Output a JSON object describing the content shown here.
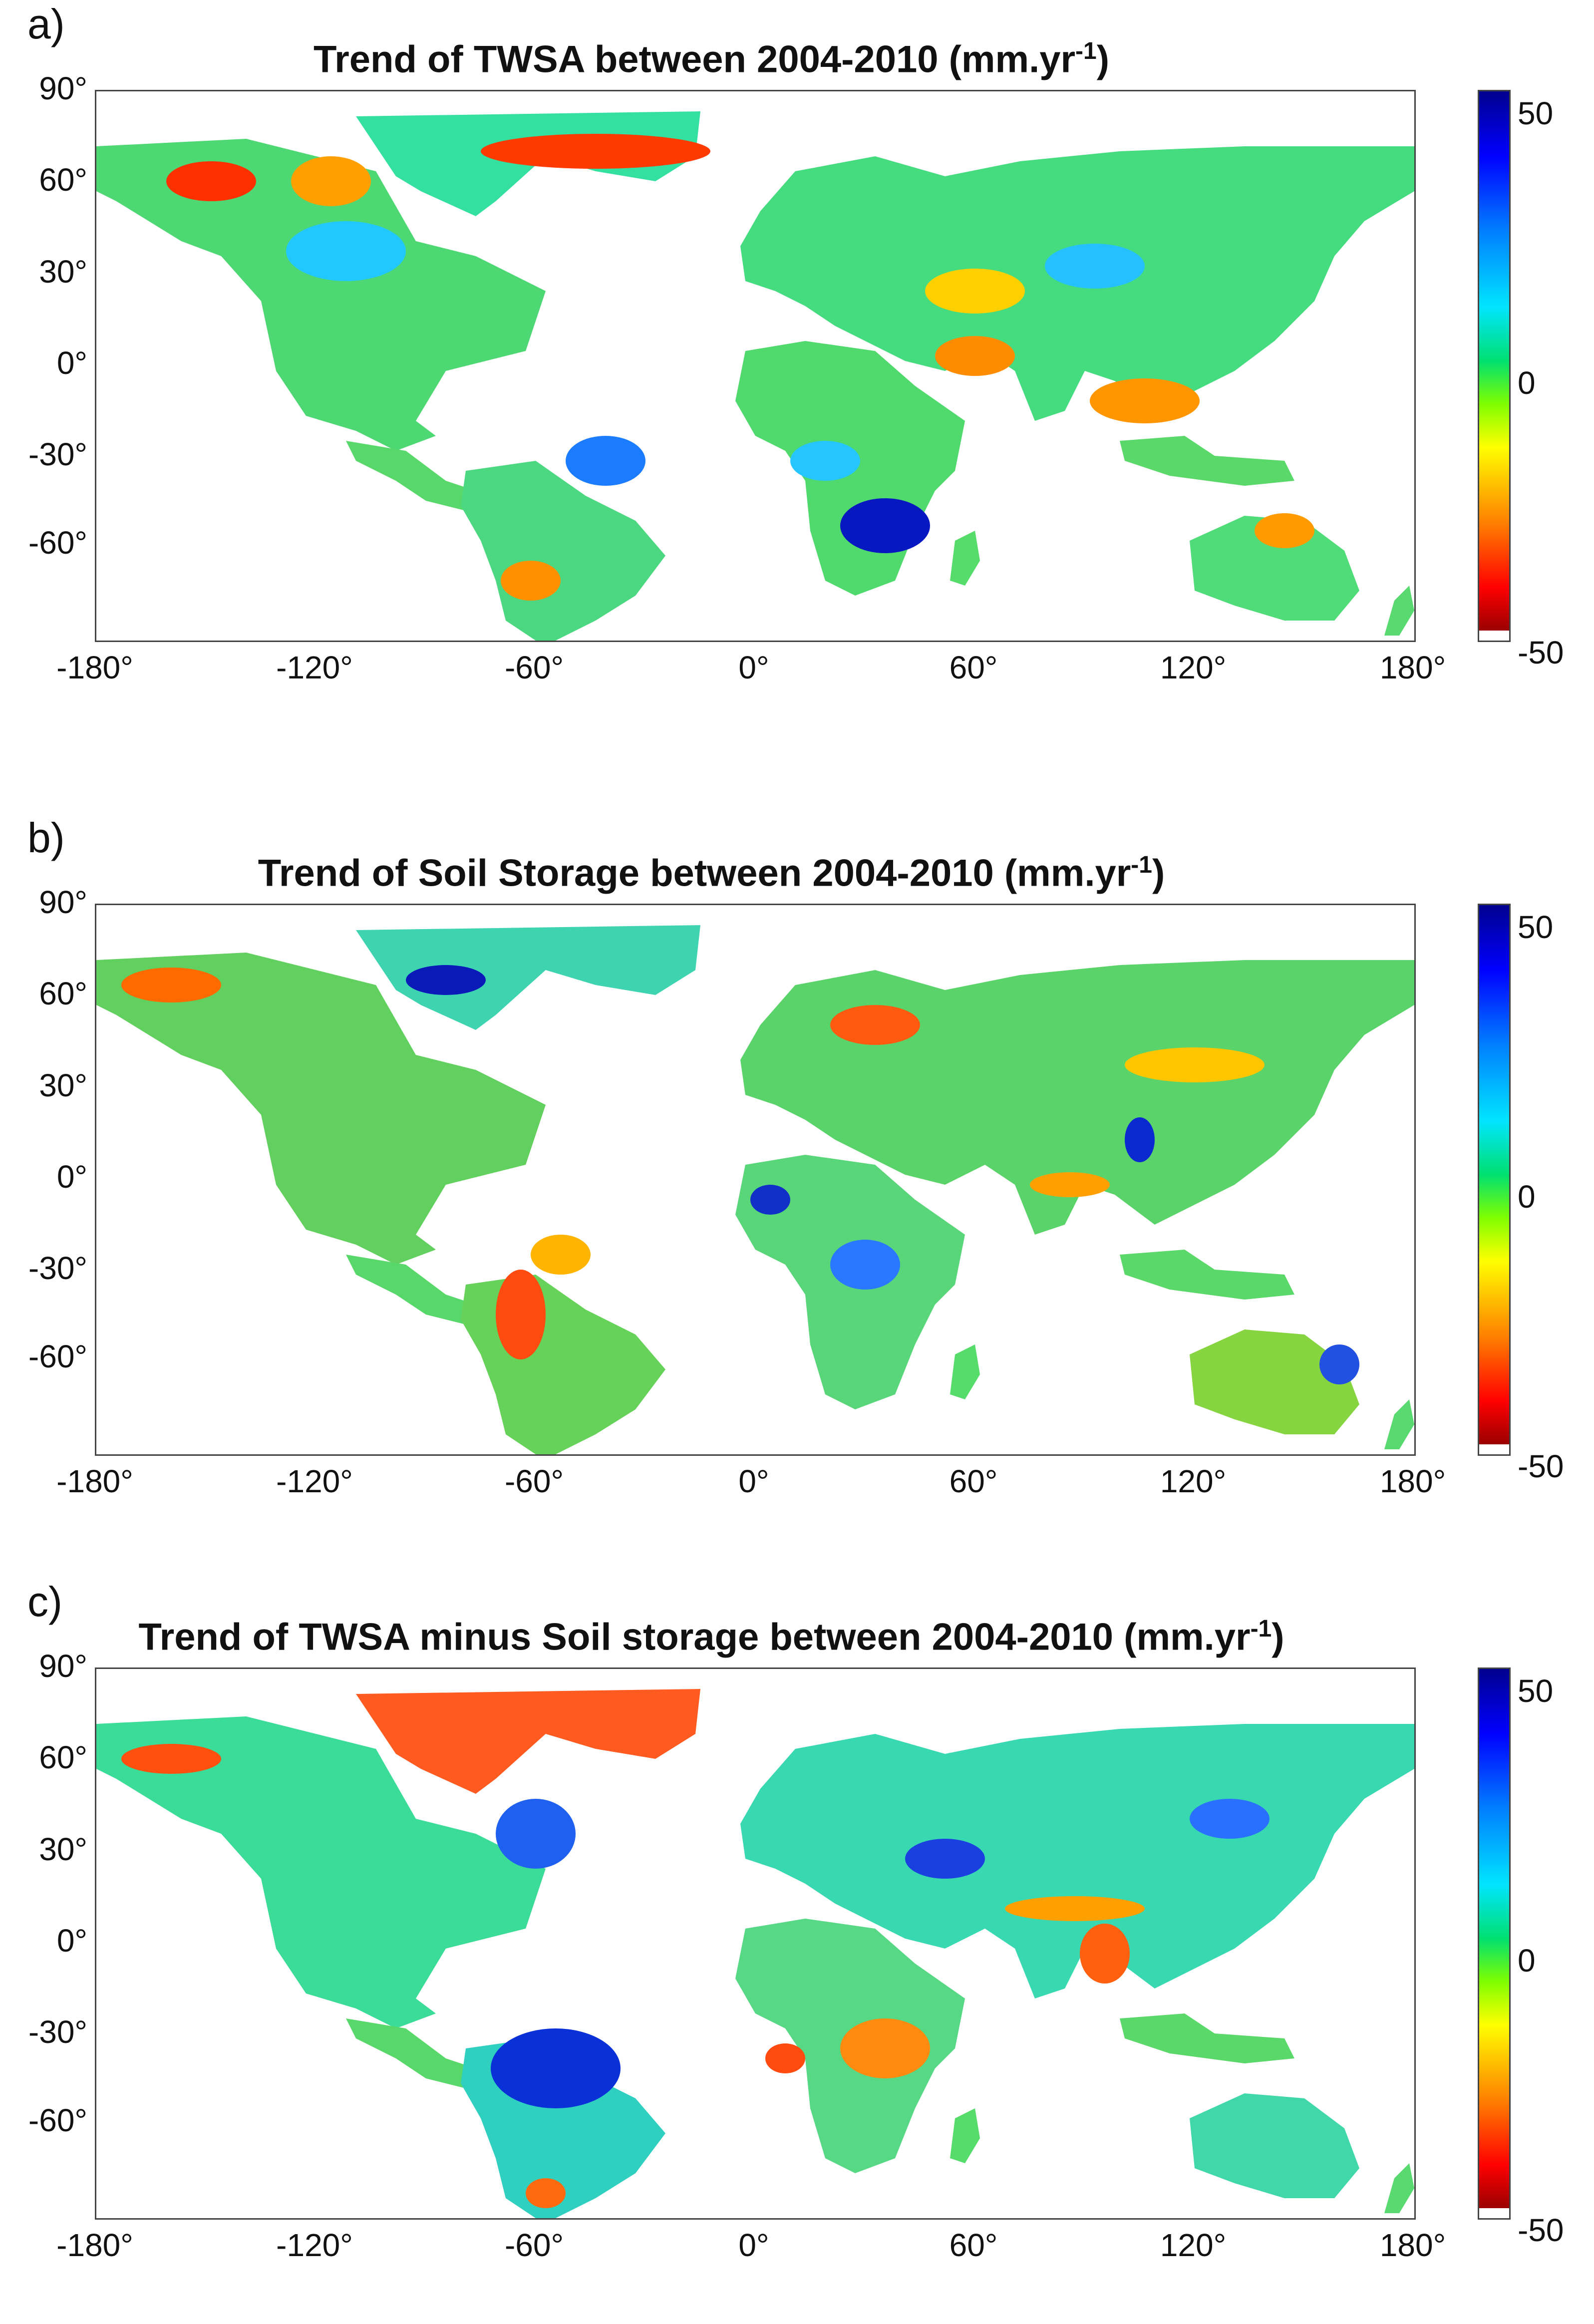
{
  "figure": {
    "panels": [
      {
        "letter": "a)",
        "title": "Trend of TWSA between 2004-2010 (mm.yr",
        "title_sup": "-1",
        "title_end": ")",
        "style": "smooth"
      },
      {
        "letter": "b)",
        "title": "Trend of Soil Storage between 2004-2010 (mm.yr",
        "title_sup": "-1",
        "title_end": ")",
        "style": "speckled"
      },
      {
        "letter": "c)",
        "title": "Trend of TWSA minus Soil storage between 2004-2010 (mm.yr",
        "title_sup": "-1",
        "title_end": ")",
        "style": "speckled"
      }
    ],
    "lat_ticks": [
      "90°",
      "60°",
      "30°",
      "0°",
      "-30°",
      "-60°"
    ],
    "lon_ticks": [
      "-180°",
      "-120°",
      "-60°",
      "0°",
      "60°",
      "120°",
      "180°"
    ],
    "colorbar": {
      "max_label": "50",
      "mid_label": "0",
      "min_label": "-50",
      "range": [
        -50,
        50
      ],
      "colormap": "jet"
    }
  }
}
